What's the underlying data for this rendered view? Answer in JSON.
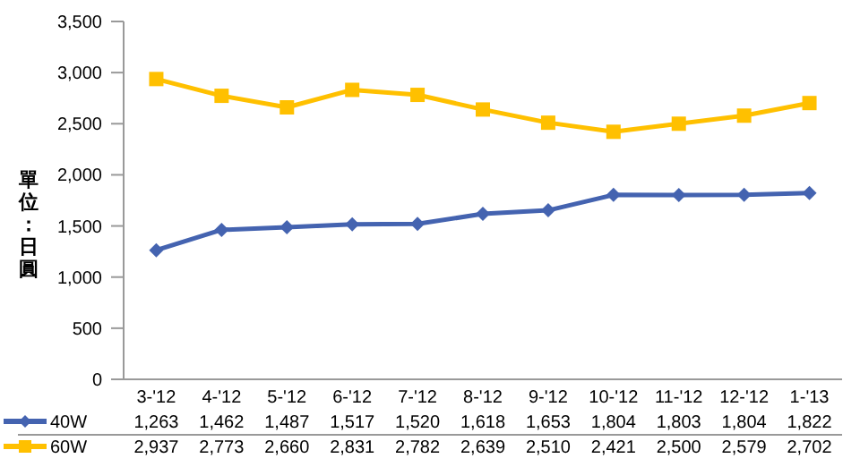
{
  "chart_data": {
    "type": "line",
    "ylabel": "單位：日圓",
    "categories": [
      "3-'12",
      "4-'12",
      "5-'12",
      "6-'12",
      "7-'12",
      "8-'12",
      "9-'12",
      "10-'12",
      "11-'12",
      "12-'12",
      "1-'13"
    ],
    "series": [
      {
        "name": "40W",
        "color": "#4463b0",
        "marker": "diamond",
        "values": [
          1263,
          1462,
          1487,
          1517,
          1520,
          1618,
          1653,
          1804,
          1803,
          1804,
          1822
        ],
        "value_labels": [
          "1,263",
          "1,462",
          "1,487",
          "1,517",
          "1,520",
          "1,618",
          "1,653",
          "1,804",
          "1,803",
          "1,804",
          "1,822"
        ]
      },
      {
        "name": "60W",
        "color": "#ffc000",
        "marker": "square",
        "values": [
          2937,
          2773,
          2660,
          2831,
          2782,
          2639,
          2510,
          2421,
          2500,
          2579,
          2702
        ],
        "value_labels": [
          "2,937",
          "2,773",
          "2,660",
          "2,831",
          "2,782",
          "2,639",
          "2,510",
          "2,421",
          "2,500",
          "2,579",
          "2,702"
        ]
      }
    ],
    "ylim": [
      0,
      3500
    ],
    "yticks": [
      {
        "value": 0,
        "label": "0"
      },
      {
        "value": 500,
        "label": "500"
      },
      {
        "value": 1000,
        "label": "1,000"
      },
      {
        "value": 1500,
        "label": "1,500"
      },
      {
        "value": 2000,
        "label": "2,000"
      },
      {
        "value": 2500,
        "label": "2,500"
      },
      {
        "value": 3000,
        "label": "3,000"
      },
      {
        "value": 3500,
        "label": "3,500"
      }
    ],
    "legend": "bottom"
  }
}
